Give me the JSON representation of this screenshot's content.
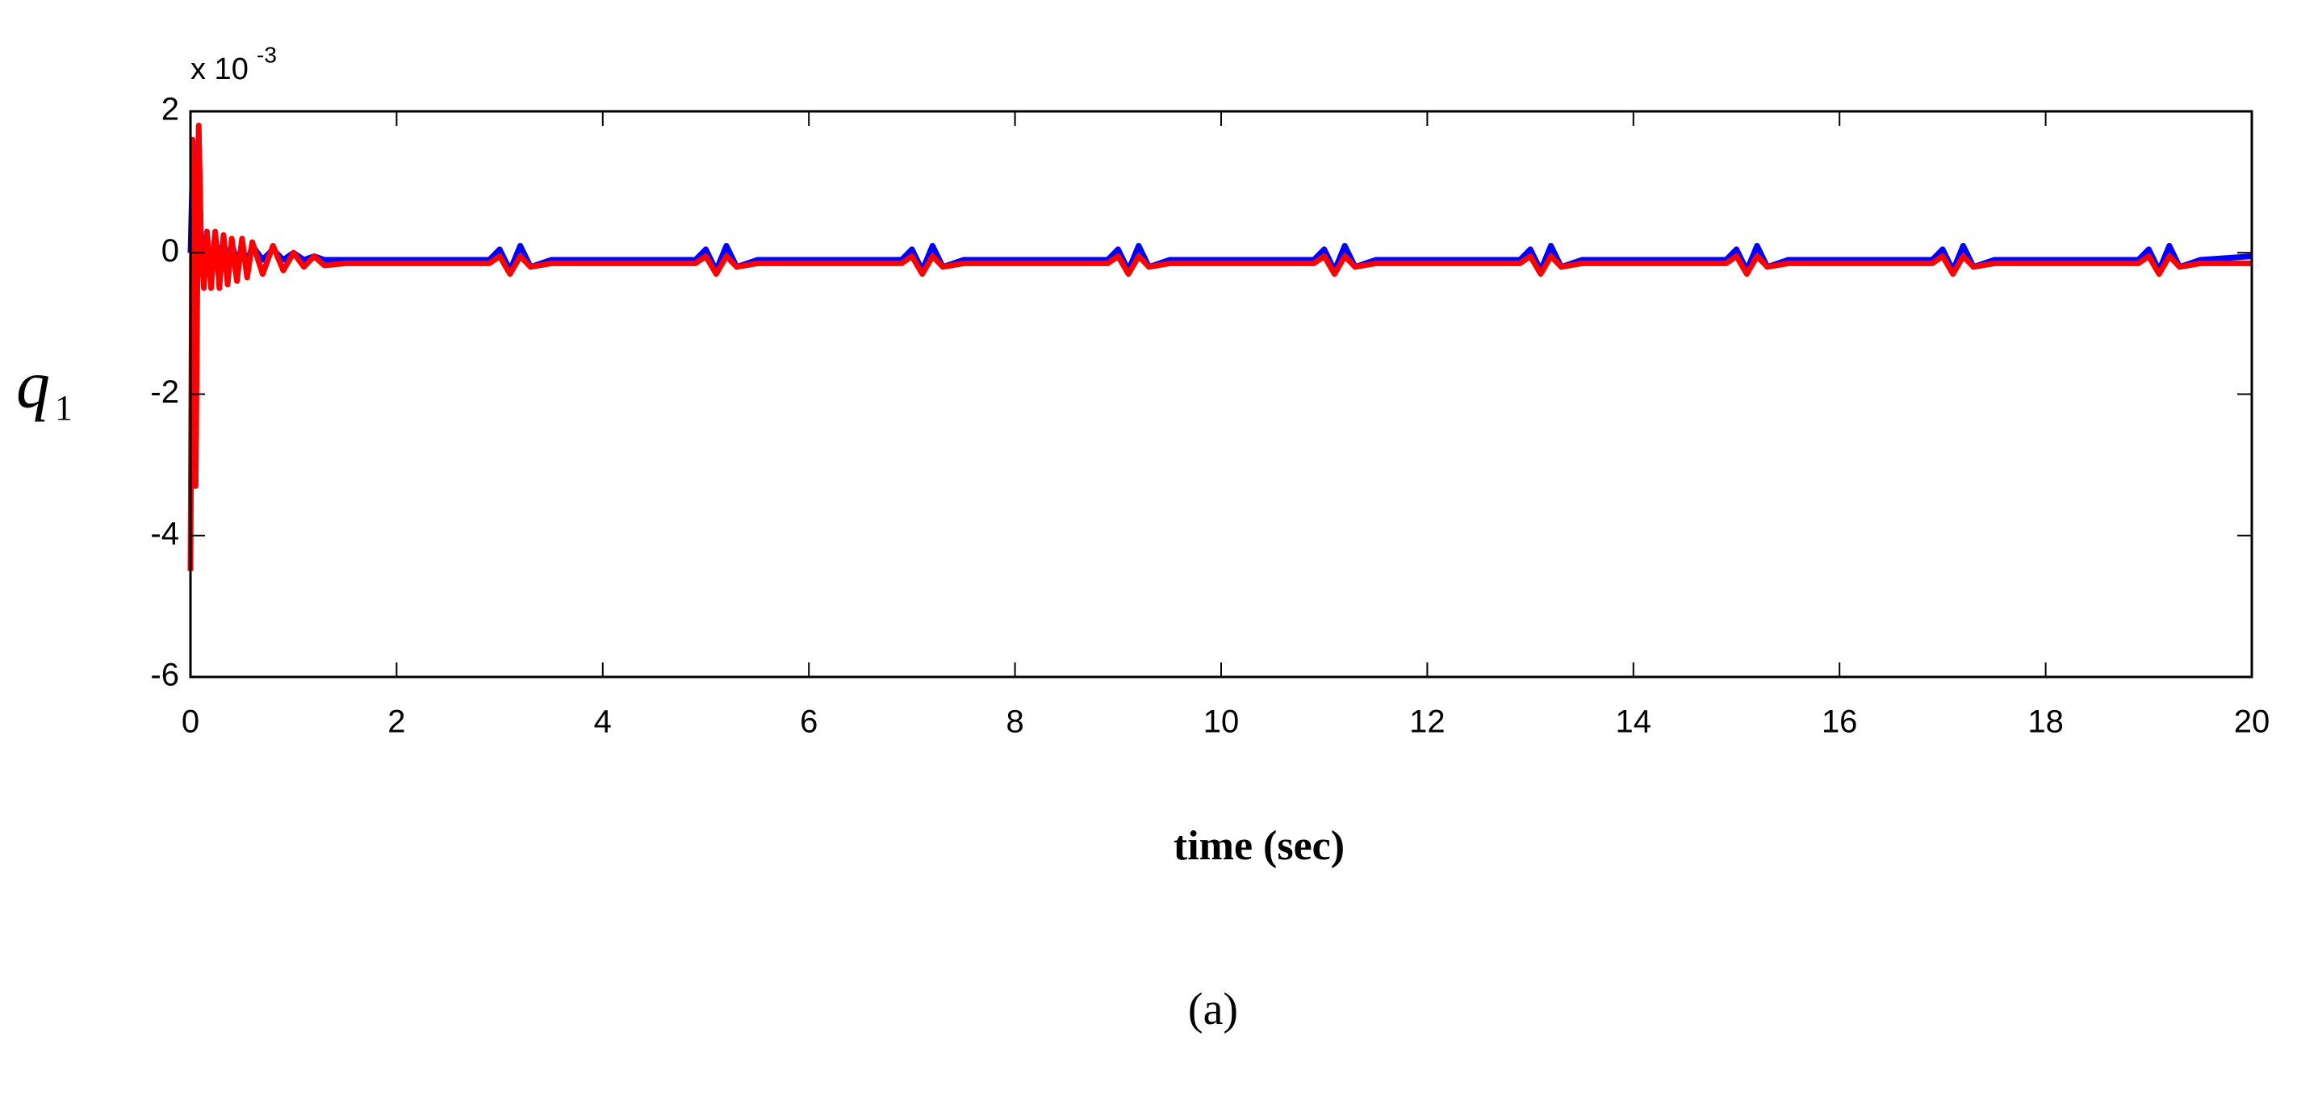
{
  "chart_data": {
    "type": "line",
    "xlabel": "time (sec)",
    "ylabel": "q",
    "ylabel_subscript": "1",
    "exponent_label": "x 10",
    "exponent_power": "-3",
    "caption": "(a)",
    "xlim": [
      0,
      20
    ],
    "xticks": [
      0,
      2,
      4,
      6,
      8,
      10,
      12,
      14,
      16,
      18,
      20
    ],
    "ylim": [
      -6,
      2
    ],
    "yticks": [
      -6,
      -4,
      -2,
      0,
      2
    ],
    "grid": false,
    "x": [
      0,
      0.02,
      0.05,
      0.08,
      0.1,
      0.13,
      0.16,
      0.2,
      0.24,
      0.28,
      0.32,
      0.36,
      0.4,
      0.45,
      0.5,
      0.55,
      0.6,
      0.7,
      0.8,
      0.9,
      1.0,
      1.1,
      1.2,
      1.3,
      1.5,
      2.0,
      2.9,
      3.0,
      3.1,
      3.2,
      3.3,
      3.5,
      4.9,
      5.0,
      5.1,
      5.2,
      5.3,
      5.5,
      6.9,
      7.0,
      7.1,
      7.2,
      7.3,
      7.5,
      8.9,
      9.0,
      9.1,
      9.2,
      9.3,
      9.5,
      10.9,
      11.0,
      11.1,
      11.2,
      11.3,
      11.5,
      12.9,
      13.0,
      13.1,
      13.2,
      13.3,
      13.5,
      14.9,
      15.0,
      15.1,
      15.2,
      15.3,
      15.5,
      16.9,
      17.0,
      17.1,
      17.2,
      17.3,
      17.5,
      18.9,
      19.0,
      19.1,
      19.2,
      19.3,
      19.5,
      20
    ],
    "series": [
      {
        "color": "#0000ff",
        "values": [
          0,
          1.2,
          0.5,
          1.7,
          0.3,
          -0.3,
          0.2,
          -0.3,
          0.25,
          -0.2,
          0.2,
          -0.2,
          0.15,
          -0.15,
          0.1,
          -0.15,
          0.1,
          -0.1,
          0.05,
          -0.1,
          0.0,
          -0.1,
          -0.05,
          -0.1,
          -0.1,
          -0.1,
          -0.1,
          0.05,
          -0.25,
          0.1,
          -0.2,
          -0.1,
          -0.1,
          0.05,
          -0.25,
          0.1,
          -0.2,
          -0.1,
          -0.1,
          0.05,
          -0.25,
          0.1,
          -0.2,
          -0.1,
          -0.1,
          0.05,
          -0.25,
          0.1,
          -0.2,
          -0.1,
          -0.1,
          0.05,
          -0.25,
          0.1,
          -0.2,
          -0.1,
          -0.1,
          0.05,
          -0.25,
          0.1,
          -0.2,
          -0.1,
          -0.1,
          0.05,
          -0.25,
          0.1,
          -0.2,
          -0.1,
          -0.1,
          0.05,
          -0.25,
          0.1,
          -0.2,
          -0.1,
          -0.1,
          0.05,
          -0.25,
          0.1,
          -0.2,
          -0.1,
          -0.05
        ]
      },
      {
        "color": "#ff0000",
        "values": [
          -4.5,
          1.6,
          -3.3,
          1.8,
          0.2,
          -0.5,
          0.3,
          -0.5,
          0.3,
          -0.5,
          0.25,
          -0.45,
          0.2,
          -0.4,
          0.2,
          -0.35,
          0.15,
          -0.3,
          0.1,
          -0.25,
          0.0,
          -0.2,
          -0.05,
          -0.18,
          -0.15,
          -0.15,
          -0.15,
          -0.05,
          -0.3,
          -0.05,
          -0.2,
          -0.15,
          -0.15,
          -0.05,
          -0.3,
          -0.05,
          -0.2,
          -0.15,
          -0.15,
          -0.05,
          -0.3,
          -0.05,
          -0.2,
          -0.15,
          -0.15,
          -0.05,
          -0.3,
          -0.05,
          -0.2,
          -0.15,
          -0.15,
          -0.05,
          -0.3,
          -0.05,
          -0.2,
          -0.15,
          -0.15,
          -0.05,
          -0.3,
          -0.05,
          -0.2,
          -0.15,
          -0.15,
          -0.05,
          -0.3,
          -0.05,
          -0.2,
          -0.15,
          -0.15,
          -0.05,
          -0.3,
          -0.05,
          -0.2,
          -0.15,
          -0.15,
          -0.05,
          -0.3,
          -0.05,
          -0.2,
          -0.15,
          -0.15
        ]
      }
    ]
  }
}
